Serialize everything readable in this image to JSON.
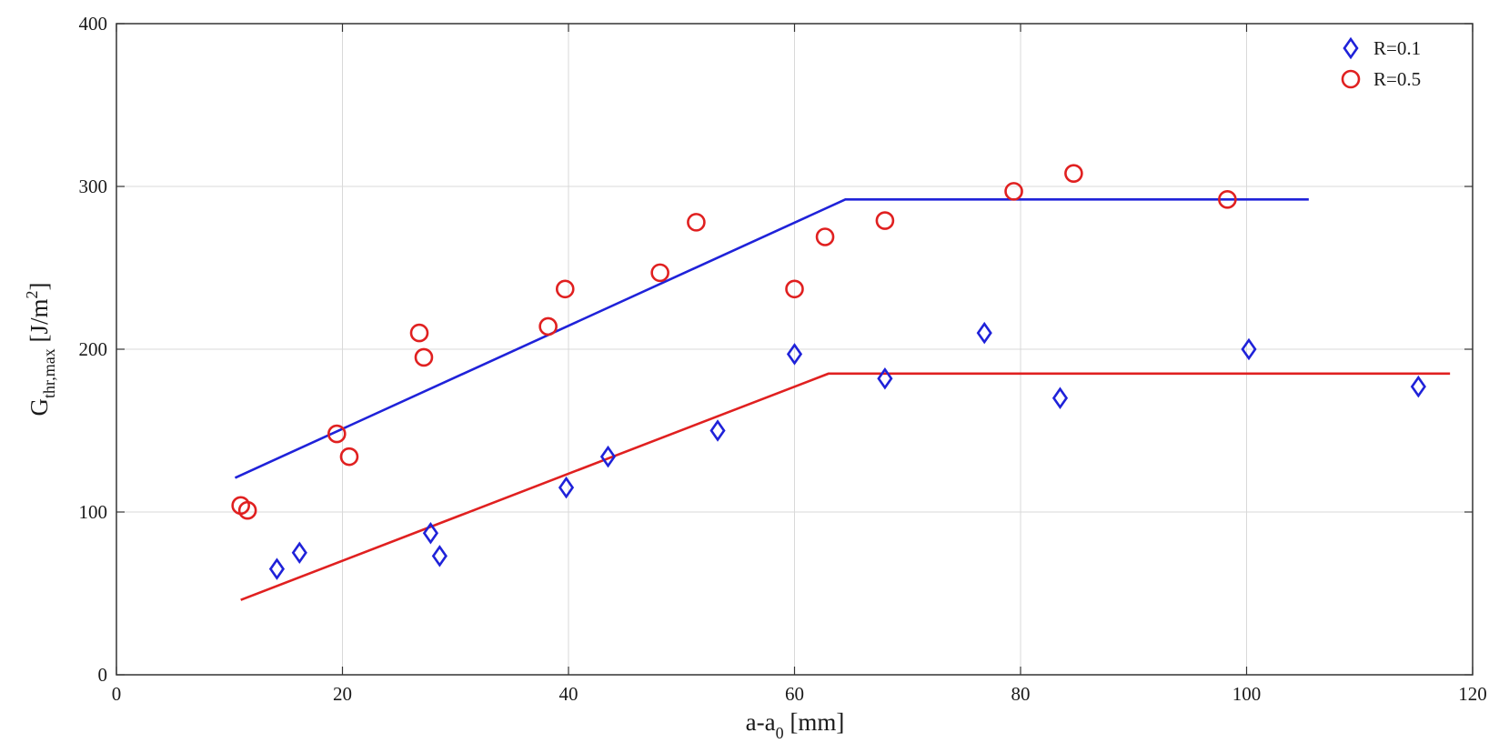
{
  "chart_data": {
    "type": "scatter",
    "title": "",
    "xlabel": {
      "main": "a-a",
      "sub": "0",
      "rest": " [mm]"
    },
    "ylabel": {
      "main": "G",
      "sub": "thr,max",
      "rest": " [J/m",
      "sup": "2",
      "end": "]"
    },
    "xlim": [
      0,
      120
    ],
    "ylim": [
      0,
      400
    ],
    "xticks": [
      "0",
      "20",
      "40",
      "60",
      "80",
      "100",
      "120"
    ],
    "yticks": [
      "0",
      "100",
      "200",
      "300",
      "400"
    ],
    "grid": true,
    "legend_position": "top-right",
    "series": [
      {
        "name": "R=0.1",
        "marker": "diamond",
        "color": "#1f22d9",
        "points": [
          [
            14.2,
            65
          ],
          [
            16.2,
            75
          ],
          [
            27.8,
            87
          ],
          [
            28.6,
            73
          ],
          [
            39.8,
            115
          ],
          [
            43.5,
            134
          ],
          [
            53.2,
            150
          ],
          [
            60.0,
            197
          ],
          [
            68.0,
            182
          ],
          [
            76.8,
            210
          ],
          [
            83.5,
            170
          ],
          [
            100.2,
            200
          ],
          [
            115.2,
            177
          ]
        ]
      },
      {
        "name": "R=0.5",
        "marker": "circle",
        "color": "#e02020",
        "points": [
          [
            11.0,
            104
          ],
          [
            11.6,
            101
          ],
          [
            19.5,
            148
          ],
          [
            20.6,
            134
          ],
          [
            26.8,
            210
          ],
          [
            27.2,
            195
          ],
          [
            38.2,
            214
          ],
          [
            39.7,
            237
          ],
          [
            48.1,
            247
          ],
          [
            51.3,
            278
          ],
          [
            60.0,
            237
          ],
          [
            62.7,
            269
          ],
          [
            68.0,
            279
          ],
          [
            79.4,
            297
          ],
          [
            84.7,
            308
          ],
          [
            98.3,
            292
          ]
        ]
      }
    ],
    "fit_lines": [
      {
        "color": "#1f22d9",
        "points": [
          [
            10.5,
            121
          ],
          [
            64.5,
            292
          ],
          [
            105.5,
            292
          ]
        ]
      },
      {
        "color": "#e02020",
        "points": [
          [
            11.0,
            46
          ],
          [
            63.0,
            185
          ],
          [
            118.0,
            185
          ]
        ]
      }
    ]
  }
}
